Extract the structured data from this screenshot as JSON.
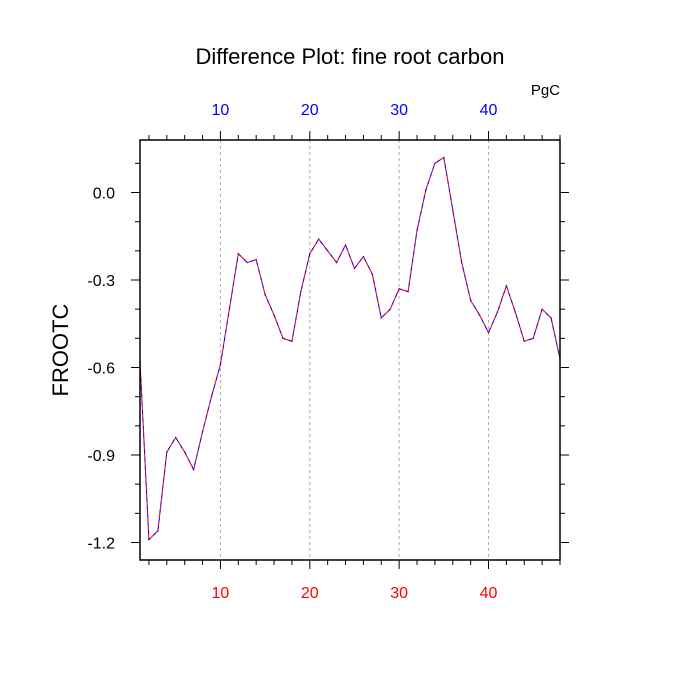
{
  "chart_data": {
    "type": "line",
    "title": "Difference Plot: fine root carbon",
    "units": "PgC",
    "ylabel": "FROOTC",
    "xlabel": "",
    "xlim": [
      1,
      48
    ],
    "ylim": [
      -1.26,
      0.18
    ],
    "x_ticks": [
      10,
      20,
      30,
      40
    ],
    "y_ticks": [
      0.0,
      -0.3,
      -0.6,
      -0.9,
      -1.2
    ],
    "y_tick_labels": [
      "0.0",
      "-0.3",
      "-0.6",
      "-0.9",
      "-1.2"
    ],
    "x_tick_color_bottom": "#ff0000",
    "x_tick_color_top": "#0000ff",
    "grid": "vertical dashed at major x ticks",
    "series": [
      {
        "line_colors": [
          "#0000ff",
          "#ff0000"
        ],
        "line_style": "dashed",
        "x": [
          1,
          2,
          3,
          4,
          5,
          6,
          7,
          8,
          9,
          10,
          11,
          12,
          13,
          14,
          15,
          16,
          17,
          18,
          19,
          20,
          21,
          22,
          23,
          24,
          25,
          26,
          27,
          28,
          29,
          30,
          31,
          32,
          33,
          34,
          35,
          36,
          37,
          38,
          39,
          40,
          41,
          42,
          43,
          44,
          45,
          46,
          47,
          48
        ],
        "y": [
          -0.58,
          -1.19,
          -1.16,
          -0.89,
          -0.84,
          -0.89,
          -0.95,
          -0.82,
          -0.7,
          -0.59,
          -0.4,
          -0.21,
          -0.24,
          -0.23,
          -0.35,
          -0.42,
          -0.5,
          -0.51,
          -0.34,
          -0.21,
          -0.16,
          -0.2,
          -0.24,
          -0.18,
          -0.26,
          -0.22,
          -0.28,
          -0.43,
          -0.4,
          -0.33,
          -0.34,
          -0.13,
          0.01,
          0.1,
          0.12,
          -0.06,
          -0.24,
          -0.37,
          -0.42,
          -0.48,
          -0.41,
          -0.32,
          -0.41,
          -0.51,
          -0.5,
          -0.4,
          -0.43,
          -0.57
        ]
      }
    ]
  }
}
